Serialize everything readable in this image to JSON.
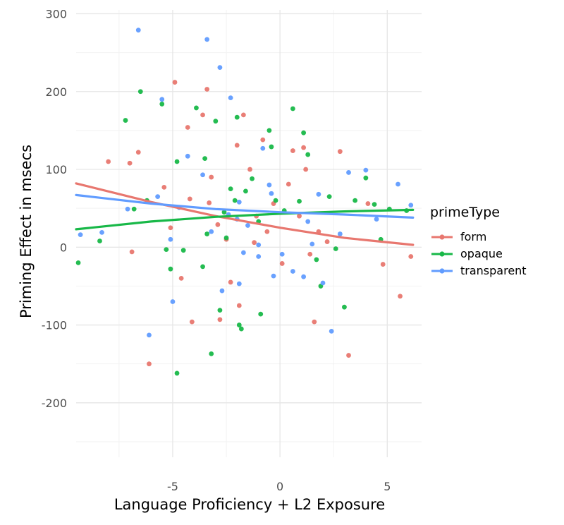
{
  "chart_data": {
    "type": "scatter",
    "xlabel": "Language Proficiency + L2 Exposure",
    "ylabel": "Priming Effect in msecs",
    "xlim": [
      -9.5,
      6.6
    ],
    "ylim": [
      -270,
      305
    ],
    "x_ticks": [
      -5,
      0,
      5
    ],
    "y_ticks": [
      -200,
      -100,
      0,
      100,
      200,
      300
    ],
    "grid": true,
    "legend": {
      "title": "primeType",
      "placement": "right",
      "entries": [
        "form",
        "opaque",
        "transparent"
      ]
    },
    "series": [
      {
        "name": "form",
        "color": "#E8776F",
        "trend": [
          [
            -9.5,
            82
          ],
          [
            -6,
            58
          ],
          [
            -3,
            40
          ],
          [
            0,
            25
          ],
          [
            3,
            12
          ],
          [
            6.2,
            3
          ]
        ],
        "points": [
          [
            -8.0,
            110
          ],
          [
            -7.0,
            108
          ],
          [
            -6.6,
            122
          ],
          [
            -6.9,
            -6
          ],
          [
            -6.1,
            -150
          ],
          [
            -5.4,
            77
          ],
          [
            -5.1,
            25
          ],
          [
            -4.9,
            212
          ],
          [
            -4.6,
            -40
          ],
          [
            -4.3,
            154
          ],
          [
            -4.1,
            -96
          ],
          [
            -3.6,
            170
          ],
          [
            -3.4,
            203
          ],
          [
            -3.2,
            90
          ],
          [
            -3.3,
            57
          ],
          [
            -2.9,
            29
          ],
          [
            -2.8,
            -93
          ],
          [
            -2.5,
            10
          ],
          [
            -2.3,
            -45
          ],
          [
            -2.0,
            131
          ],
          [
            -1.9,
            -75
          ],
          [
            -1.7,
            170
          ],
          [
            -1.4,
            100
          ],
          [
            -1.1,
            40
          ],
          [
            -0.8,
            138
          ],
          [
            -0.6,
            20
          ],
          [
            -0.3,
            56
          ],
          [
            0.1,
            -21
          ],
          [
            0.4,
            81
          ],
          [
            0.6,
            124
          ],
          [
            0.9,
            40
          ],
          [
            1.1,
            128
          ],
          [
            1.2,
            100
          ],
          [
            1.6,
            -96
          ],
          [
            1.8,
            20
          ],
          [
            2.2,
            7
          ],
          [
            2.8,
            123
          ],
          [
            3.2,
            -139
          ],
          [
            4.1,
            56
          ],
          [
            4.8,
            -22
          ],
          [
            5.6,
            -63
          ],
          [
            6.1,
            -12
          ],
          [
            -4.2,
            62
          ],
          [
            -1.2,
            6
          ],
          [
            1.4,
            -9
          ]
        ]
      },
      {
        "name": "opaque",
        "color": "#18B848",
        "trend": [
          [
            -9.5,
            23
          ],
          [
            -6,
            33
          ],
          [
            -3,
            39
          ],
          [
            0,
            43
          ],
          [
            3,
            46
          ],
          [
            6.2,
            48
          ]
        ],
        "points": [
          [
            -9.4,
            -20
          ],
          [
            -8.4,
            8
          ],
          [
            -7.2,
            163
          ],
          [
            -6.8,
            49
          ],
          [
            -6.5,
            200
          ],
          [
            -6.2,
            60
          ],
          [
            -5.5,
            184
          ],
          [
            -5.3,
            -3
          ],
          [
            -5.1,
            -28
          ],
          [
            -4.8,
            -162
          ],
          [
            -4.8,
            110
          ],
          [
            -4.5,
            -4
          ],
          [
            -3.9,
            179
          ],
          [
            -3.5,
            114
          ],
          [
            -3.2,
            -137
          ],
          [
            -3.4,
            17
          ],
          [
            -3.0,
            162
          ],
          [
            -2.8,
            -81
          ],
          [
            -2.6,
            45
          ],
          [
            -2.3,
            75
          ],
          [
            -2.1,
            60
          ],
          [
            -2.0,
            167
          ],
          [
            -1.9,
            -100
          ],
          [
            -1.8,
            -105
          ],
          [
            -1.6,
            72
          ],
          [
            -1.3,
            88
          ],
          [
            -1.0,
            33
          ],
          [
            -0.9,
            -86
          ],
          [
            -0.5,
            150
          ],
          [
            -0.4,
            129
          ],
          [
            -0.2,
            60
          ],
          [
            0.2,
            47
          ],
          [
            0.6,
            178
          ],
          [
            0.9,
            59
          ],
          [
            1.1,
            147
          ],
          [
            1.3,
            119
          ],
          [
            1.7,
            -16
          ],
          [
            1.9,
            -50
          ],
          [
            2.3,
            65
          ],
          [
            2.6,
            -2
          ],
          [
            3.0,
            -77
          ],
          [
            3.5,
            60
          ],
          [
            4.0,
            89
          ],
          [
            4.4,
            55
          ],
          [
            4.7,
            10
          ],
          [
            5.1,
            49
          ],
          [
            5.9,
            47
          ],
          [
            -2.5,
            12
          ],
          [
            -3.6,
            -25
          ]
        ]
      },
      {
        "name": "transparent",
        "color": "#619CFF",
        "trend": [
          [
            -9.5,
            67
          ],
          [
            -6,
            56
          ],
          [
            -3,
            49
          ],
          [
            0,
            45
          ],
          [
            3,
            42
          ],
          [
            6.2,
            38
          ]
        ],
        "points": [
          [
            -9.3,
            16
          ],
          [
            -8.3,
            19
          ],
          [
            -7.1,
            49
          ],
          [
            -6.6,
            279
          ],
          [
            -6.1,
            -113
          ],
          [
            -5.7,
            65
          ],
          [
            -5.5,
            190
          ],
          [
            -5.1,
            10
          ],
          [
            -5.0,
            -70
          ],
          [
            -4.7,
            51
          ],
          [
            -4.3,
            117
          ],
          [
            -3.6,
            93
          ],
          [
            -3.4,
            267
          ],
          [
            -3.2,
            20
          ],
          [
            -2.8,
            231
          ],
          [
            -2.7,
            -56
          ],
          [
            -2.4,
            42
          ],
          [
            -2.3,
            192
          ],
          [
            -1.9,
            58
          ],
          [
            -1.9,
            -47
          ],
          [
            -1.7,
            -7
          ],
          [
            -1.5,
            28
          ],
          [
            -1.0,
            3
          ],
          [
            -0.8,
            127
          ],
          [
            -0.5,
            80
          ],
          [
            -0.4,
            69
          ],
          [
            -0.3,
            -37
          ],
          [
            0.1,
            -9
          ],
          [
            0.6,
            -31
          ],
          [
            1.1,
            -38
          ],
          [
            1.3,
            33
          ],
          [
            1.5,
            4
          ],
          [
            1.8,
            68
          ],
          [
            2.0,
            -46
          ],
          [
            2.4,
            -108
          ],
          [
            2.8,
            17
          ],
          [
            3.2,
            96
          ],
          [
            4.0,
            99
          ],
          [
            4.5,
            36
          ],
          [
            5.5,
            81
          ],
          [
            6.1,
            54
          ],
          [
            -2.0,
            36
          ],
          [
            -1.0,
            -12
          ]
        ]
      }
    ]
  }
}
